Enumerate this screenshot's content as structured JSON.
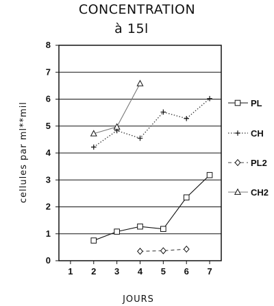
{
  "chart_data": {
    "type": "line",
    "title": "CONCENTRATION",
    "subtitle": "à 15l",
    "xlabel": "JOURS",
    "ylabel": "cellules par ml**mil",
    "x_ticks": [
      "1",
      "2",
      "3",
      "4",
      "5",
      "6",
      "7"
    ],
    "y_ticks": [
      "0",
      "1",
      "2",
      "3",
      "4",
      "5",
      "6",
      "7",
      "8"
    ],
    "xlim": [
      0.5,
      7.5
    ],
    "ylim": [
      0,
      8
    ],
    "grid": "horizontal",
    "legend_position": "right",
    "series": [
      {
        "name": "PL",
        "marker": "square",
        "line": "solid",
        "x": [
          2,
          3,
          4,
          5,
          6,
          7
        ],
        "values": [
          0.75,
          1.08,
          1.27,
          1.18,
          2.35,
          3.18
        ]
      },
      {
        "name": "CH",
        "marker": "plus",
        "line": "dotted",
        "x": [
          2,
          3,
          4,
          5,
          6,
          7
        ],
        "values": [
          4.22,
          4.83,
          4.55,
          5.52,
          5.28,
          6.02
        ]
      },
      {
        "name": "PL2",
        "marker": "diamond",
        "line": "dashed",
        "x": [
          4,
          5,
          6
        ],
        "values": [
          0.35,
          0.37,
          0.43
        ]
      },
      {
        "name": "CH2",
        "marker": "triangle",
        "line": "solid",
        "x": [
          2,
          3,
          4
        ],
        "values": [
          4.72,
          4.97,
          6.58
        ]
      }
    ]
  }
}
